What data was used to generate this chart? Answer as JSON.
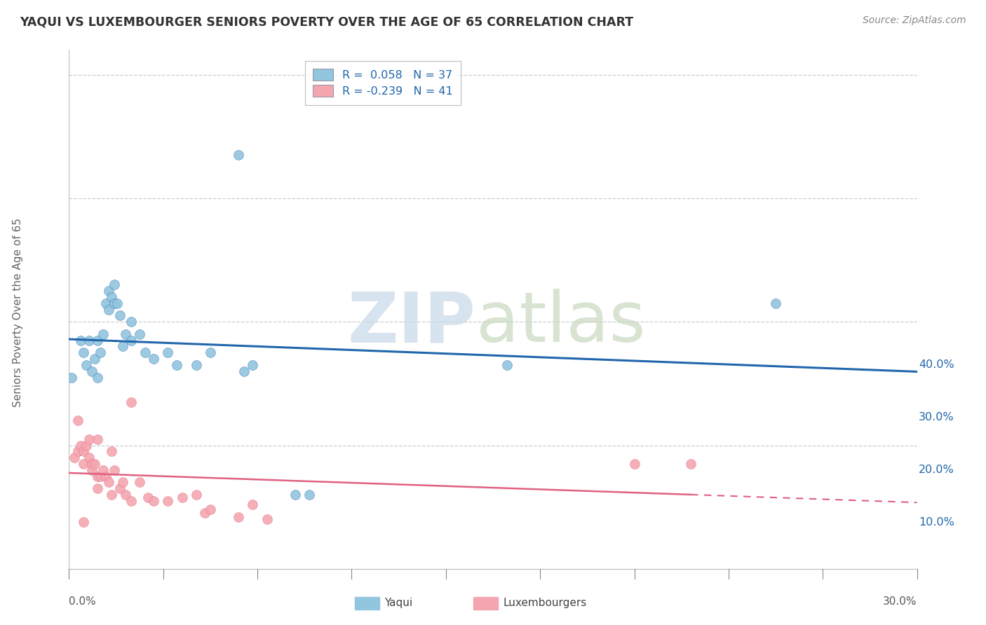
{
  "title": "YAQUI VS LUXEMBOURGER SENIORS POVERTY OVER THE AGE OF 65 CORRELATION CHART",
  "source": "Source: ZipAtlas.com",
  "ylabel": "Seniors Poverty Over the Age of 65",
  "R_yaqui": 0.058,
  "N_yaqui": 37,
  "R_luxembourger": -0.239,
  "N_luxembourger": 41,
  "yaqui_color": "#92c5de",
  "luxembourger_color": "#f4a6b0",
  "yaqui_line_color": "#2166ac",
  "luxembourger_line_color": "#e06080",
  "background_color": "#ffffff",
  "grid_color": "#cccccc",
  "xlim": [
    0.0,
    0.3
  ],
  "ylim": [
    -0.005,
    0.42
  ],
  "ylabel_tick_vals": [
    0.1,
    0.2,
    0.3,
    0.4
  ],
  "ylabel_tick_labels": [
    "10.0%",
    "20.0%",
    "30.0%",
    "40.0%"
  ],
  "yaqui_scatter": [
    [
      0.001,
      0.155
    ],
    [
      0.004,
      0.185
    ],
    [
      0.005,
      0.175
    ],
    [
      0.006,
      0.165
    ],
    [
      0.007,
      0.185
    ],
    [
      0.008,
      0.16
    ],
    [
      0.009,
      0.17
    ],
    [
      0.01,
      0.155
    ],
    [
      0.01,
      0.185
    ],
    [
      0.011,
      0.175
    ],
    [
      0.012,
      0.19
    ],
    [
      0.013,
      0.215
    ],
    [
      0.014,
      0.21
    ],
    [
      0.014,
      0.225
    ],
    [
      0.015,
      0.22
    ],
    [
      0.016,
      0.215
    ],
    [
      0.016,
      0.23
    ],
    [
      0.017,
      0.215
    ],
    [
      0.018,
      0.205
    ],
    [
      0.019,
      0.18
    ],
    [
      0.02,
      0.19
    ],
    [
      0.022,
      0.2
    ],
    [
      0.022,
      0.185
    ],
    [
      0.025,
      0.19
    ],
    [
      0.027,
      0.175
    ],
    [
      0.03,
      0.17
    ],
    [
      0.035,
      0.175
    ],
    [
      0.038,
      0.165
    ],
    [
      0.045,
      0.165
    ],
    [
      0.05,
      0.175
    ],
    [
      0.06,
      0.335
    ],
    [
      0.062,
      0.16
    ],
    [
      0.065,
      0.165
    ],
    [
      0.08,
      0.06
    ],
    [
      0.085,
      0.06
    ],
    [
      0.155,
      0.165
    ],
    [
      0.25,
      0.215
    ]
  ],
  "luxembourger_scatter": [
    [
      0.002,
      0.09
    ],
    [
      0.003,
      0.12
    ],
    [
      0.003,
      0.095
    ],
    [
      0.004,
      0.1
    ],
    [
      0.005,
      0.095
    ],
    [
      0.005,
      0.085
    ],
    [
      0.006,
      0.1
    ],
    [
      0.007,
      0.105
    ],
    [
      0.007,
      0.09
    ],
    [
      0.008,
      0.085
    ],
    [
      0.008,
      0.08
    ],
    [
      0.009,
      0.085
    ],
    [
      0.01,
      0.105
    ],
    [
      0.01,
      0.075
    ],
    [
      0.01,
      0.065
    ],
    [
      0.011,
      0.075
    ],
    [
      0.012,
      0.08
    ],
    [
      0.013,
      0.075
    ],
    [
      0.014,
      0.07
    ],
    [
      0.015,
      0.095
    ],
    [
      0.015,
      0.06
    ],
    [
      0.016,
      0.08
    ],
    [
      0.018,
      0.065
    ],
    [
      0.019,
      0.07
    ],
    [
      0.02,
      0.06
    ],
    [
      0.022,
      0.055
    ],
    [
      0.022,
      0.135
    ],
    [
      0.025,
      0.07
    ],
    [
      0.028,
      0.058
    ],
    [
      0.03,
      0.055
    ],
    [
      0.035,
      0.055
    ],
    [
      0.04,
      0.058
    ],
    [
      0.045,
      0.06
    ],
    [
      0.048,
      0.045
    ],
    [
      0.05,
      0.048
    ],
    [
      0.06,
      0.042
    ],
    [
      0.065,
      0.052
    ],
    [
      0.07,
      0.04
    ],
    [
      0.2,
      0.085
    ],
    [
      0.22,
      0.085
    ],
    [
      0.005,
      0.038
    ]
  ]
}
